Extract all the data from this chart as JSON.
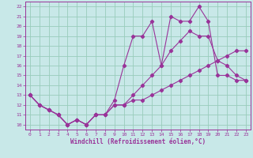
{
  "xlabel": "Windchill (Refroidissement éolien,°C)",
  "bg_color": "#c8e8e8",
  "line_color": "#993399",
  "grid_color": "#99ccbb",
  "xlim": [
    -0.5,
    23.5
  ],
  "ylim": [
    9.5,
    22.5
  ],
  "xticks": [
    0,
    1,
    2,
    3,
    4,
    5,
    6,
    7,
    8,
    9,
    10,
    11,
    12,
    13,
    14,
    15,
    16,
    17,
    18,
    19,
    20,
    21,
    22,
    23
  ],
  "yticks": [
    10,
    11,
    12,
    13,
    14,
    15,
    16,
    17,
    18,
    19,
    20,
    21,
    22
  ],
  "line1_x": [
    0,
    1,
    2,
    3,
    4,
    5,
    6,
    7,
    8,
    9,
    10,
    11,
    12,
    13,
    14,
    15,
    16,
    17,
    18,
    19,
    20,
    21,
    22,
    23
  ],
  "line1_y": [
    13.0,
    12.0,
    11.5,
    11.0,
    10.0,
    10.5,
    10.0,
    11.0,
    11.0,
    12.5,
    16.0,
    19.0,
    19.0,
    20.5,
    16.0,
    21.0,
    20.5,
    20.5,
    22.0,
    20.5,
    15.0,
    15.0,
    14.5,
    14.5
  ],
  "line2_x": [
    0,
    1,
    2,
    3,
    4,
    5,
    6,
    7,
    8,
    9,
    10,
    11,
    12,
    13,
    14,
    15,
    16,
    17,
    18,
    19,
    20,
    21,
    22,
    23
  ],
  "line2_y": [
    13.0,
    12.0,
    11.5,
    11.0,
    10.0,
    10.5,
    10.0,
    11.0,
    11.0,
    12.0,
    12.0,
    13.0,
    14.0,
    15.0,
    16.0,
    17.5,
    18.5,
    19.5,
    19.0,
    19.0,
    16.5,
    16.0,
    15.0,
    14.5
  ],
  "line3_x": [
    0,
    1,
    2,
    3,
    4,
    5,
    6,
    7,
    8,
    9,
    10,
    11,
    12,
    13,
    14,
    15,
    16,
    17,
    18,
    19,
    20,
    21,
    22,
    23
  ],
  "line3_y": [
    13.0,
    12.0,
    11.5,
    11.0,
    10.0,
    10.5,
    10.0,
    11.0,
    11.0,
    12.0,
    12.0,
    12.5,
    12.5,
    13.0,
    13.5,
    14.0,
    14.5,
    15.0,
    15.5,
    16.0,
    16.5,
    17.0,
    17.5,
    17.5
  ]
}
